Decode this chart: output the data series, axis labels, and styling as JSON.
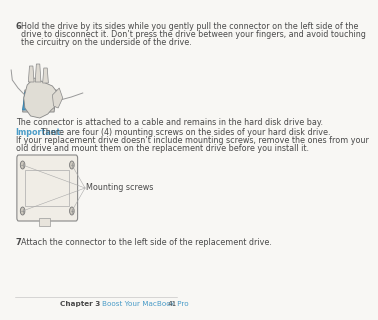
{
  "bg_color": "#f8f7f4",
  "text_color": "#4a4a4a",
  "blue_color": "#4a9cc8",
  "step6_num": "6",
  "step6_line1": "Hold the drive by its sides while you gently pull the connector on the left side of the",
  "step6_line2": "drive to disconnect it. Don’t press the drive between your fingers, and avoid touching",
  "step6_line3": "the circuitry on the underside of the drive.",
  "caption1": "The connector is attached to a cable and remains in the hard disk drive bay.",
  "important_label": "Important:",
  "important_line1": "  There are four (4) mounting screws on the sides of your hard disk drive.",
  "important_line2": "If your replacement drive doesn’t include mounting screws, remove the ones from your",
  "important_line3": "old drive and mount them on the replacement drive before you install it.",
  "mounting_label": "Mounting screws",
  "step7_num": "7",
  "step7_text": "Attach the connector to the left side of the replacement drive.",
  "footer_chapter": "Chapter 3",
  "footer_title": "Boost Your MacBook Pro",
  "footer_page": "41",
  "font_size_body": 5.8,
  "font_size_footer": 5.2,
  "font_size_step_num": 6.0
}
